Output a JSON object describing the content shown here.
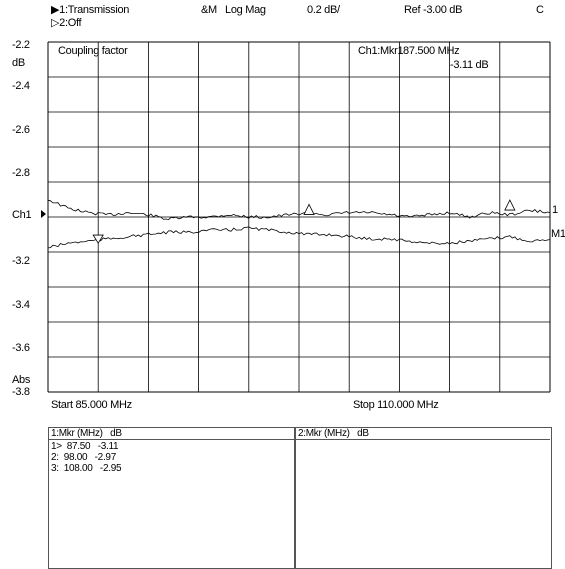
{
  "header": {
    "trace1": "▶1:Transmission",
    "trace2": "▷2:Off",
    "meas_mode": "&M",
    "format": "Log Mag",
    "scale": "0.2 dB/",
    "ref": "Ref -3.00 dB",
    "channel_flag": "C"
  },
  "axis": {
    "unit_top": "dB",
    "unit_bottom": "Abs",
    "channel_label": "Ch1",
    "y_ticks": [
      "-2.2",
      "-2.4",
      "-2.6",
      "-2.8",
      "",
      "-3.2",
      "-3.4",
      "-3.6",
      "-3.8"
    ],
    "start": "Start 85.000 MHz",
    "stop": "Stop 110.000 MHz"
  },
  "grid": {
    "title": "Coupling factor",
    "marker_readout_label": "Ch1:Mkr1",
    "marker_readout_freq": "87.500 MHz",
    "marker_readout_value": "-3.11 dB",
    "trace_label_1": "1",
    "trace_label_2": "M1"
  },
  "tables": {
    "left_header": "1:Mkr (MHz)   dB",
    "right_header": "2:Mkr (MHz)   dB",
    "left_rows": [
      "1>  87.50   -3.11",
      "2:  98.00   -2.97",
      "3:  108.00   -2.95"
    ]
  },
  "chart_data": {
    "type": "line",
    "xlim": [
      85.0,
      110.0
    ],
    "ylim": [
      -3.8,
      -2.2
    ],
    "ylabel": "dB",
    "grid": true,
    "series": [
      {
        "x": [
          85.0,
          86.0,
          87.0,
          88.0,
          89.0,
          90.0,
          91.0,
          92.0,
          93.0,
          94.0,
          95.0,
          96.0,
          97.0,
          98.0,
          99.0,
          100.0,
          101.0,
          102.0,
          103.0,
          104.0,
          105.0,
          106.0,
          107.0,
          108.0,
          109.0,
          110.0
        ],
        "values": [
          -2.92,
          -2.96,
          -2.98,
          -2.99,
          -2.98,
          -2.99,
          -3.01,
          -3.0,
          -3.0,
          -2.99,
          -3.0,
          -3.0,
          -2.99,
          -2.98,
          -2.99,
          -2.98,
          -2.98,
          -2.99,
          -3.0,
          -2.99,
          -2.98,
          -3.0,
          -2.98,
          -2.99,
          -2.97,
          -2.98
        ]
      },
      {
        "x": [
          85.0,
          86.0,
          87.0,
          88.0,
          89.0,
          90.0,
          91.0,
          92.0,
          93.0,
          94.0,
          95.0,
          96.0,
          97.0,
          98.0,
          99.0,
          100.0,
          101.0,
          102.0,
          103.0,
          104.0,
          105.0,
          106.0,
          107.0,
          108.0,
          109.0,
          110.0
        ],
        "values": [
          -3.14,
          -3.12,
          -3.11,
          -3.1,
          -3.09,
          -3.08,
          -3.07,
          -3.07,
          -3.06,
          -3.06,
          -3.05,
          -3.06,
          -3.07,
          -3.08,
          -3.08,
          -3.09,
          -3.1,
          -3.1,
          -3.11,
          -3.12,
          -3.12,
          -3.11,
          -3.1,
          -3.09,
          -3.11,
          -3.1
        ]
      }
    ],
    "markers": [
      {
        "trace": 2,
        "x": 87.5,
        "y": -3.11
      },
      {
        "trace": 1,
        "x": 98.0,
        "y": -2.97
      },
      {
        "trace": 1,
        "x": 108.0,
        "y": -2.95
      }
    ]
  }
}
